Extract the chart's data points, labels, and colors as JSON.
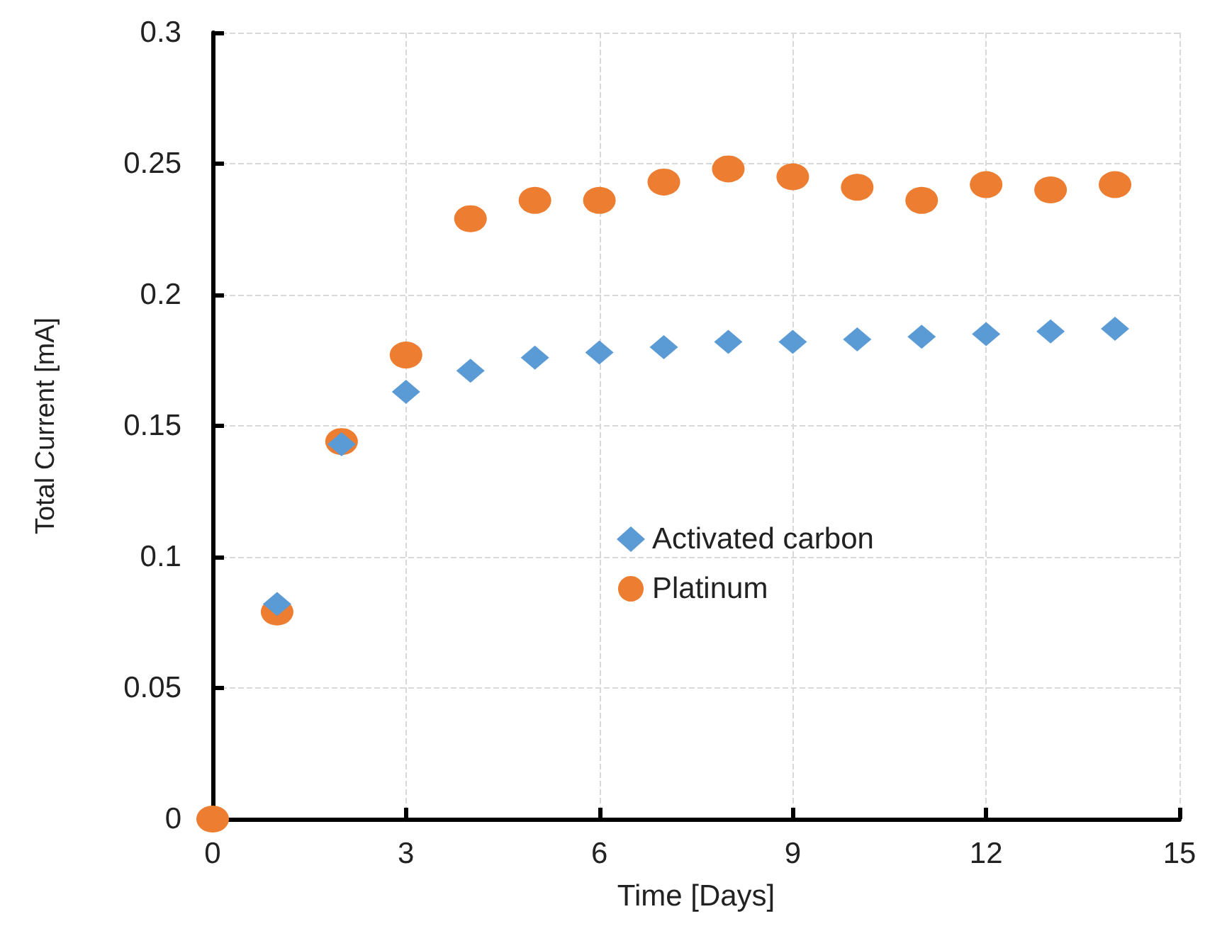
{
  "chart_data": {
    "type": "scatter",
    "xlabel": "Time [Days]",
    "ylabel": "Total Current [mA]",
    "x": [
      0,
      1,
      2,
      3,
      4,
      5,
      6,
      7,
      8,
      9,
      10,
      11,
      12,
      13,
      14
    ],
    "series": [
      {
        "name": "Activated carbon",
        "color": "#5b9bd5",
        "marker": "diamond",
        "values": [
          null,
          0.082,
          0.143,
          0.163,
          0.171,
          0.176,
          0.178,
          0.18,
          0.182,
          0.182,
          0.183,
          0.184,
          0.185,
          0.186,
          0.187
        ]
      },
      {
        "name": "Platinum",
        "color": "#ed7d31",
        "marker": "circle",
        "values": [
          0,
          0.079,
          0.144,
          0.177,
          0.229,
          0.236,
          0.236,
          0.243,
          0.248,
          0.245,
          0.241,
          0.236,
          0.242,
          0.24,
          0.242
        ]
      }
    ],
    "xlim": [
      0,
      15
    ],
    "xticks": [
      0,
      3,
      6,
      9,
      12,
      15
    ],
    "ylim": [
      0,
      0.3
    ],
    "yticks": [
      0,
      0.05,
      0.1,
      0.15,
      0.2,
      0.25,
      0.3
    ],
    "grid": true,
    "legend": "center right"
  }
}
